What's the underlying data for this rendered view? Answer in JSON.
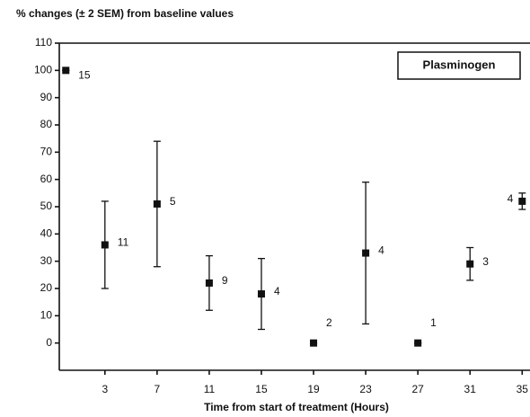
{
  "chart_data": {
    "type": "scatter",
    "title": "% changes (± 2 SEM) from baseline values",
    "x_label": "Time from start of treatment (Hours)",
    "series": [
      {
        "name": "Plasminogen",
        "color": "#111111",
        "x": [
          0,
          3,
          7,
          11,
          15,
          19,
          23,
          27,
          31,
          35
        ],
        "values": [
          100,
          36,
          51,
          22,
          18,
          0,
          33,
          0,
          29,
          52
        ],
        "errors": [
          0,
          16,
          23,
          10,
          13,
          0,
          26,
          0,
          6,
          3
        ],
        "point_labels": [
          15,
          11,
          5,
          9,
          4,
          2,
          4,
          1,
          3,
          4
        ]
      }
    ],
    "xlim": [
      -0.5,
      35.6
    ],
    "xticks": [
      3,
      7,
      11,
      15,
      19,
      23,
      27,
      31,
      35
    ],
    "ylim": [
      -10,
      110
    ],
    "yticks": [
      0,
      10,
      20,
      30,
      40,
      50,
      60,
      70,
      80,
      90,
      100,
      110
    ],
    "legend": "upper right"
  }
}
